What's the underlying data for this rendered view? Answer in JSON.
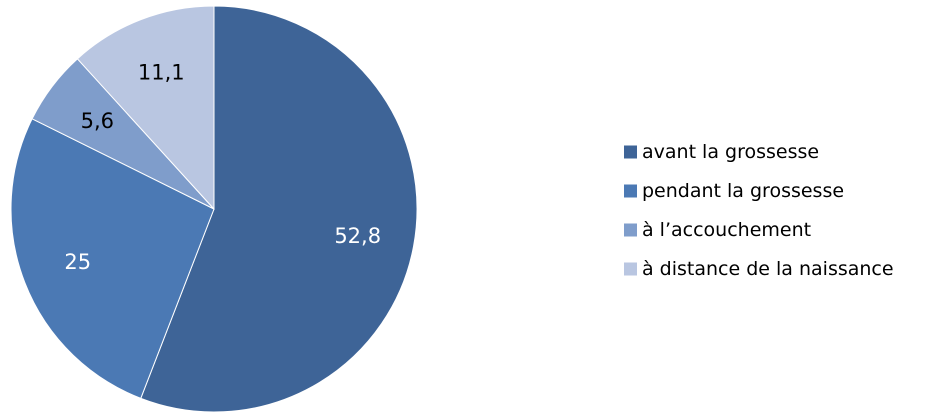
{
  "chart_data": {
    "type": "pie",
    "title": "",
    "start": "top-clockwise",
    "legend_position": "right",
    "slices": [
      {
        "label": "avant la grossesse",
        "value": 52.8,
        "display": "52,8",
        "color": "#3e6497",
        "label_color": "#ffffff"
      },
      {
        "label": "pendant la grossesse",
        "value": 25,
        "display": "25",
        "color": "#4b79b4",
        "label_color": "#ffffff"
      },
      {
        "label": "à l’accouchement",
        "value": 5.6,
        "display": "5,6",
        "color": "#7f9dcb",
        "label_color": "#000000"
      },
      {
        "label": "à distance de la naissance",
        "value": 11.1,
        "display": "11,1",
        "color": "#b9c6e1",
        "label_color": "#000000"
      }
    ]
  }
}
